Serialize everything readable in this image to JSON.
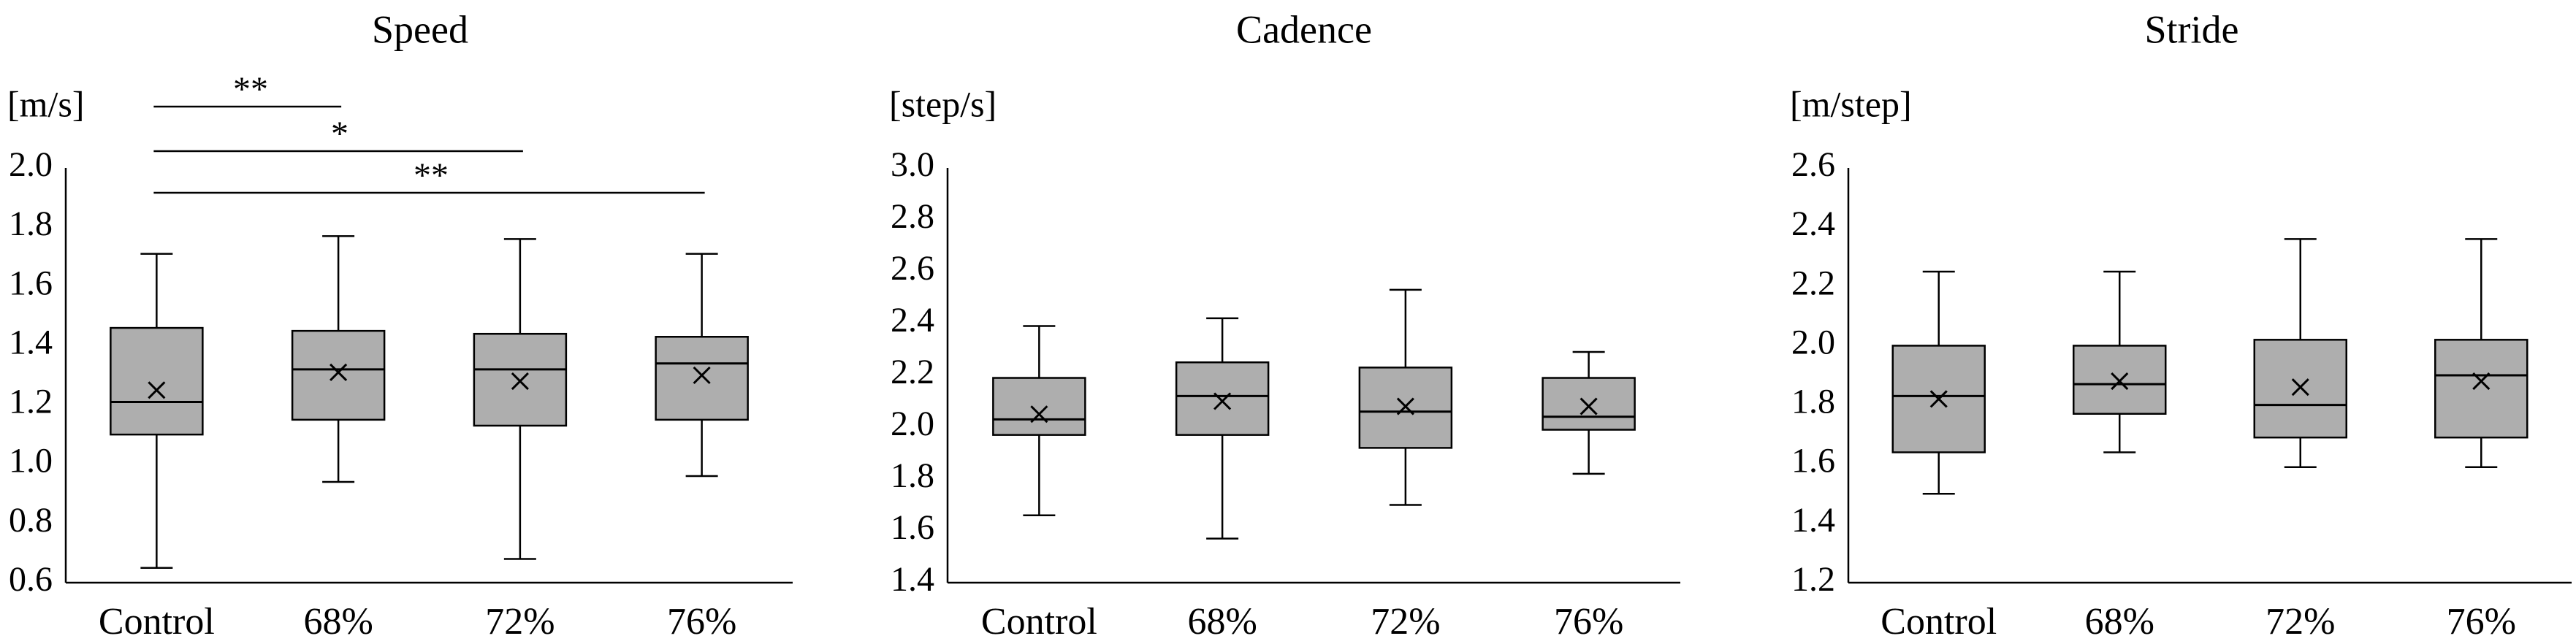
{
  "chart_data": [
    {
      "type": "boxplot",
      "title": "Speed",
      "ylabel": "[m/s]",
      "ylim": [
        0.6,
        2.0
      ],
      "yticks": [
        "0.6",
        "0.8",
        "1.0",
        "1.2",
        "1.4",
        "1.6",
        "1.8",
        "2.0"
      ],
      "categories": [
        "Control",
        "68%",
        "72%",
        "76%"
      ],
      "boxes": [
        {
          "min": 0.65,
          "q1": 1.1,
          "median": 1.21,
          "q3": 1.46,
          "max": 1.71,
          "mean": 1.25
        },
        {
          "min": 0.94,
          "q1": 1.15,
          "median": 1.32,
          "q3": 1.45,
          "max": 1.77,
          "mean": 1.31
        },
        {
          "min": 0.68,
          "q1": 1.13,
          "median": 1.32,
          "q3": 1.44,
          "max": 1.76,
          "mean": 1.28
        },
        {
          "min": 0.96,
          "q1": 1.15,
          "median": 1.34,
          "q3": 1.43,
          "max": 1.71,
          "mean": 1.3
        }
      ],
      "significance": [
        {
          "from": 0,
          "to": 1,
          "label": "**"
        },
        {
          "from": 0,
          "to": 2,
          "label": "*"
        },
        {
          "from": 0,
          "to": 3,
          "label": "**"
        }
      ]
    },
    {
      "type": "boxplot",
      "title": "Cadence",
      "ylabel": "[step/s]",
      "ylim": [
        1.4,
        3.0
      ],
      "yticks": [
        "1.4",
        "1.6",
        "1.8",
        "2.0",
        "2.2",
        "2.4",
        "2.6",
        "2.8",
        "3.0"
      ],
      "categories": [
        "Control",
        "68%",
        "72%",
        "76%"
      ],
      "boxes": [
        {
          "min": 1.66,
          "q1": 1.97,
          "median": 2.03,
          "q3": 2.19,
          "max": 2.39,
          "mean": 2.05
        },
        {
          "min": 1.57,
          "q1": 1.97,
          "median": 2.12,
          "q3": 2.25,
          "max": 2.42,
          "mean": 2.1
        },
        {
          "min": 1.7,
          "q1": 1.92,
          "median": 2.06,
          "q3": 2.23,
          "max": 2.53,
          "mean": 2.08
        },
        {
          "min": 1.82,
          "q1": 1.99,
          "median": 2.04,
          "q3": 2.19,
          "max": 2.29,
          "mean": 2.08
        }
      ],
      "significance": []
    },
    {
      "type": "boxplot",
      "title": "Stride",
      "ylabel": "[m/step]",
      "ylim": [
        1.2,
        2.6
      ],
      "yticks": [
        "1.2",
        "1.4",
        "1.6",
        "1.8",
        "2.0",
        "2.2",
        "2.4",
        "2.6"
      ],
      "categories": [
        "Control",
        "68%",
        "72%",
        "76%"
      ],
      "boxes": [
        {
          "min": 1.5,
          "q1": 1.64,
          "median": 1.83,
          "q3": 2.0,
          "max": 2.25,
          "mean": 1.82
        },
        {
          "min": 1.64,
          "q1": 1.77,
          "median": 1.87,
          "q3": 2.0,
          "max": 2.25,
          "mean": 1.88
        },
        {
          "min": 1.59,
          "q1": 1.69,
          "median": 1.8,
          "q3": 2.02,
          "max": 2.36,
          "mean": 1.86
        },
        {
          "min": 1.59,
          "q1": 1.69,
          "median": 1.9,
          "q3": 2.02,
          "max": 2.36,
          "mean": 1.88
        }
      ],
      "significance": []
    }
  ],
  "style": {
    "box_fill": "#aeaeae",
    "line_color": "#000000"
  }
}
